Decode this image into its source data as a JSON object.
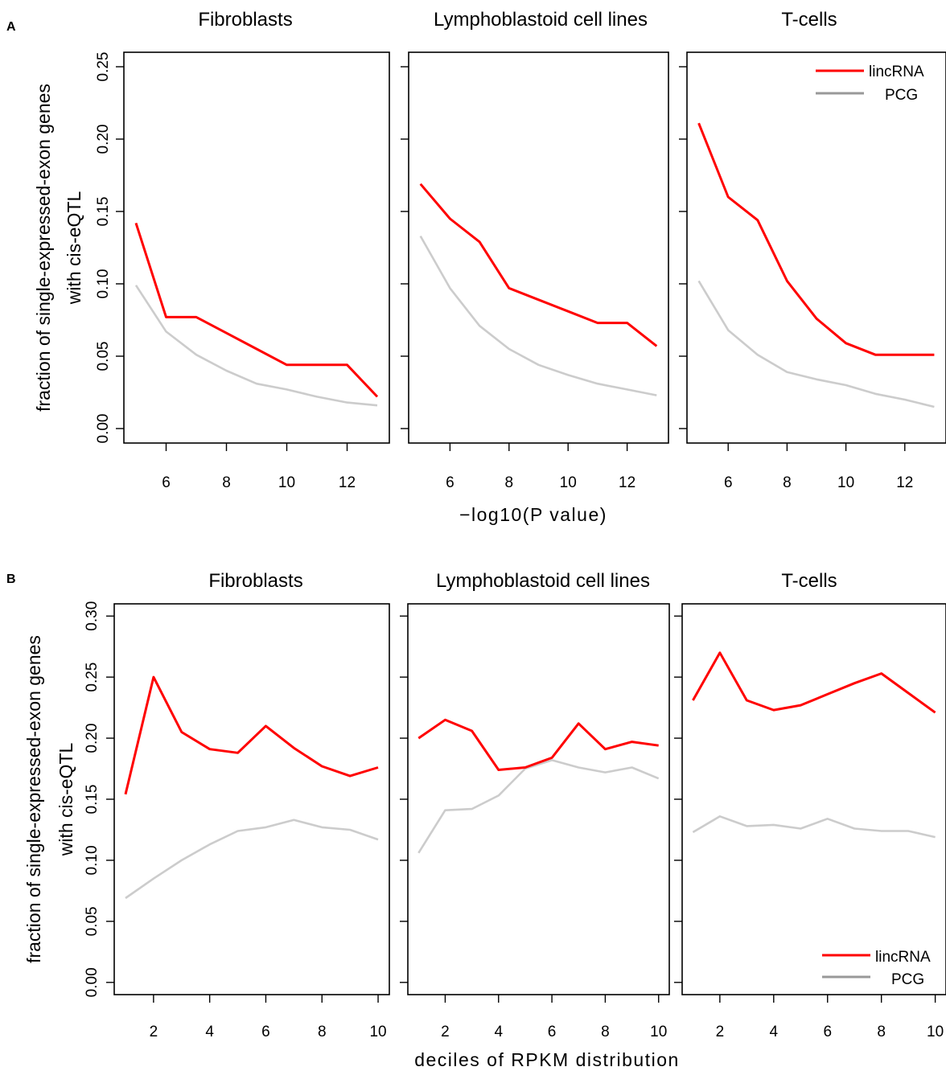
{
  "colors": {
    "lincRNA": "#ff0000",
    "PCG": "#cccccc",
    "legend_PCG": "#999999"
  },
  "chart_data": [
    {
      "panel_label": "A",
      "type": "line",
      "xlabel": "−log10(P value)",
      "ylabel": [
        "fraction of single-expressed-exon genes",
        "with cis-eQTL"
      ],
      "xlim": [
        4.6,
        13.4
      ],
      "ylim": [
        -0.01,
        0.26
      ],
      "xticks": [
        6,
        8,
        10,
        12
      ],
      "xtick_labels": [
        "6",
        "8",
        "10",
        "12"
      ],
      "yticks": [
        0,
        0.05,
        0.1,
        0.15,
        0.2,
        0.25
      ],
      "ytick_labels": [
        "0.00",
        "0.05",
        "0.10",
        "0.15",
        "0.20",
        "0.25"
      ],
      "legend": {
        "panel": 2,
        "position": "top-right",
        "entries": [
          "lincRNA",
          "PCG"
        ]
      },
      "facets": [
        {
          "title": "Fibroblasts",
          "series": [
            {
              "name": "lincRNA",
              "x": [
                5,
                6,
                7,
                8,
                9,
                10,
                11,
                12,
                13
              ],
              "y": [
                0.142,
                0.077,
                0.077,
                0.066,
                0.055,
                0.044,
                0.044,
                0.044,
                0.022
              ]
            },
            {
              "name": "PCG",
              "x": [
                5,
                6,
                7,
                8,
                9,
                10,
                11,
                12,
                13
              ],
              "y": [
                0.099,
                0.067,
                0.051,
                0.04,
                0.031,
                0.027,
                0.022,
                0.018,
                0.016
              ]
            }
          ]
        },
        {
          "title": "Lymphoblastoid cell lines",
          "series": [
            {
              "name": "lincRNA",
              "x": [
                5,
                6,
                7,
                8,
                9,
                10,
                11,
                12,
                13
              ],
              "y": [
                0.169,
                0.145,
                0.129,
                0.097,
                0.089,
                0.081,
                0.073,
                0.073,
                0.057
              ]
            },
            {
              "name": "PCG",
              "x": [
                5,
                6,
                7,
                8,
                9,
                10,
                11,
                12,
                13
              ],
              "y": [
                0.133,
                0.097,
                0.071,
                0.055,
                0.044,
                0.037,
                0.031,
                0.027,
                0.023
              ]
            }
          ]
        },
        {
          "title": "T-cells",
          "series": [
            {
              "name": "lincRNA",
              "x": [
                5,
                6,
                7,
                8,
                9,
                10,
                11,
                12,
                13
              ],
              "y": [
                0.211,
                0.16,
                0.144,
                0.102,
                0.076,
                0.059,
                0.051,
                0.051,
                0.051
              ]
            },
            {
              "name": "PCG",
              "x": [
                5,
                6,
                7,
                8,
                9,
                10,
                11,
                12,
                13
              ],
              "y": [
                0.102,
                0.068,
                0.051,
                0.039,
                0.034,
                0.03,
                0.024,
                0.02,
                0.015
              ]
            }
          ]
        }
      ]
    },
    {
      "panel_label": "B",
      "type": "line",
      "xlabel": "deciles of RPKM distribution",
      "ylabel": [
        "fraction of single-expressed-exon genes",
        "with cis-eQTL"
      ],
      "xlim": [
        0.6,
        10.4
      ],
      "ylim": [
        -0.01,
        0.31
      ],
      "xticks": [
        2,
        4,
        6,
        8,
        10
      ],
      "xtick_labels": [
        "2",
        "4",
        "6",
        "8",
        "10"
      ],
      "yticks": [
        0,
        0.05,
        0.1,
        0.15,
        0.2,
        0.25,
        0.3
      ],
      "ytick_labels": [
        "0.00",
        "0.05",
        "0.10",
        "0.15",
        "0.20",
        "0.25",
        "0.30"
      ],
      "legend": {
        "panel": 2,
        "position": "bottom-right",
        "entries": [
          "lincRNA",
          "PCG"
        ]
      },
      "facets": [
        {
          "title": "Fibroblasts",
          "series": [
            {
              "name": "lincRNA",
              "x": [
                1,
                2,
                3,
                4,
                5,
                6,
                7,
                8,
                9,
                10
              ],
              "y": [
                0.154,
                0.25,
                0.205,
                0.191,
                0.188,
                0.21,
                0.192,
                0.177,
                0.169,
                0.176
              ]
            },
            {
              "name": "PCG",
              "x": [
                1,
                2,
                3,
                4,
                5,
                6,
                7,
                8,
                9,
                10
              ],
              "y": [
                0.069,
                0.085,
                0.1,
                0.113,
                0.124,
                0.127,
                0.133,
                0.127,
                0.125,
                0.117
              ]
            }
          ]
        },
        {
          "title": "Lymphoblastoid cell lines",
          "series": [
            {
              "name": "lincRNA",
              "x": [
                1,
                2,
                3,
                4,
                5,
                6,
                7,
                8,
                9,
                10
              ],
              "y": [
                0.2,
                0.215,
                0.206,
                0.174,
                0.176,
                0.184,
                0.212,
                0.191,
                0.197,
                0.194
              ]
            },
            {
              "name": "PCG",
              "x": [
                1,
                2,
                3,
                4,
                5,
                6,
                7,
                8,
                9,
                10
              ],
              "y": [
                0.106,
                0.141,
                0.142,
                0.153,
                0.175,
                0.182,
                0.176,
                0.172,
                0.176,
                0.167
              ]
            }
          ]
        },
        {
          "title": "T-cells",
          "series": [
            {
              "name": "lincRNA",
              "x": [
                1,
                2,
                3,
                4,
                5,
                6,
                7,
                8,
                9,
                10
              ],
              "y": [
                0.231,
                0.27,
                0.231,
                0.223,
                0.227,
                0.236,
                0.245,
                0.253,
                0.237,
                0.221
              ]
            },
            {
              "name": "PCG",
              "x": [
                1,
                2,
                3,
                4,
                5,
                6,
                7,
                8,
                9,
                10
              ],
              "y": [
                0.123,
                0.136,
                0.128,
                0.129,
                0.126,
                0.134,
                0.126,
                0.124,
                0.124,
                0.119
              ]
            }
          ]
        }
      ]
    }
  ]
}
